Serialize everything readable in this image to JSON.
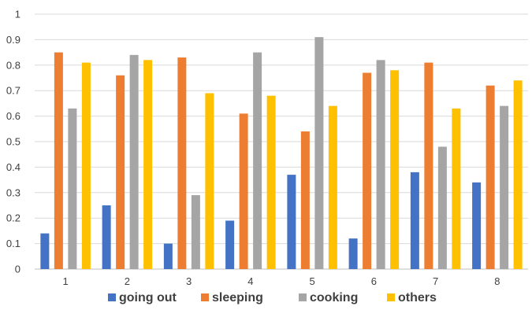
{
  "chart_data": {
    "type": "bar",
    "title": "",
    "xlabel": "",
    "ylabel": "",
    "categories": [
      "1",
      "2",
      "3",
      "4",
      "5",
      "6",
      "7",
      "8"
    ],
    "ylim": [
      0,
      1
    ],
    "yticks": [
      "0",
      "0.1",
      "0.2",
      "0.3",
      "0.4",
      "0.5",
      "0.6",
      "0.7",
      "0.8",
      "0.9",
      "1"
    ],
    "grid": true,
    "legend_position": "bottom",
    "series": [
      {
        "name": "going out",
        "color": "#4472c4",
        "values": [
          0.14,
          0.25,
          0.1,
          0.19,
          0.37,
          0.12,
          0.38,
          0.34
        ]
      },
      {
        "name": "sleeping",
        "color": "#ed7d31",
        "values": [
          0.85,
          0.76,
          0.83,
          0.61,
          0.54,
          0.77,
          0.81,
          0.72
        ]
      },
      {
        "name": "cooking",
        "color": "#a5a5a5",
        "values": [
          0.63,
          0.84,
          0.29,
          0.85,
          0.91,
          0.82,
          0.48,
          0.64
        ]
      },
      {
        "name": "others",
        "color": "#ffc000",
        "values": [
          0.81,
          0.82,
          0.69,
          0.68,
          0.64,
          0.78,
          0.63,
          0.74
        ]
      }
    ]
  }
}
